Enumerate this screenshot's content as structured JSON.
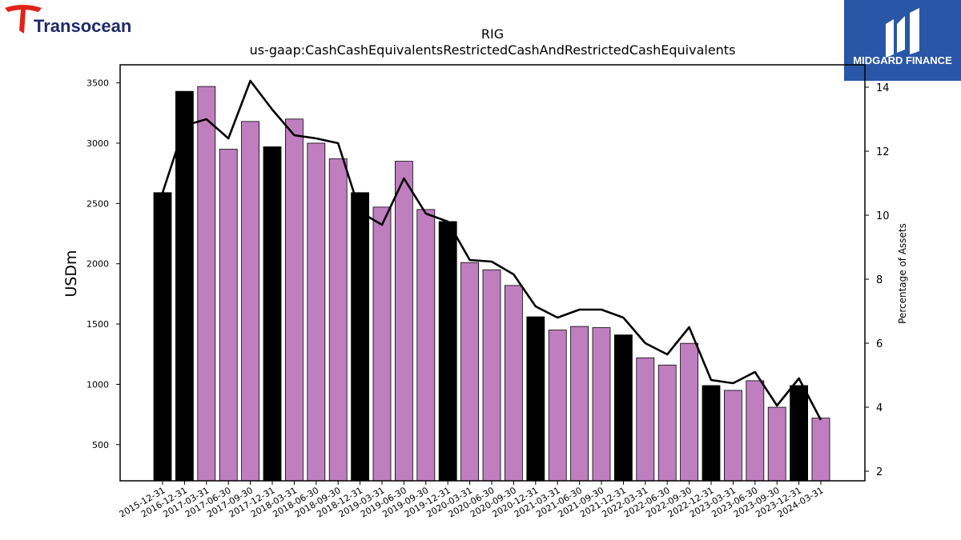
{
  "branding": {
    "left_logo_text": "Transocean",
    "right_logo_text": "MIDGARD FINANCE",
    "colors": {
      "transocean_red": "#e2231a",
      "transocean_navy": "#1f2a6b",
      "midgard_blue": "#2a56a8"
    }
  },
  "chart_data": {
    "type": "bar",
    "title": "RIG",
    "subtitle": "us-gaap:CashCashEquivalentsRestrictedCashAndRestrictedCashEquivalents",
    "ylabel": "USDm",
    "y2label": "Percentage of Assets",
    "ylim": [
      200,
      3650
    ],
    "y2lim": [
      1.7,
      14.7
    ],
    "yticks": [
      500,
      1000,
      1500,
      2000,
      2500,
      3000,
      3500
    ],
    "y2ticks": [
      2,
      4,
      6,
      8,
      10,
      12,
      14
    ],
    "colors": {
      "annual": "#000000",
      "quarterly": "#bf7fbf",
      "line": "#000000"
    },
    "categories": [
      "2015-12-31",
      "2016-12-31",
      "2017-03-31",
      "2017-06-30",
      "2017-09-30",
      "2017-12-31",
      "2018-03-31",
      "2018-06-30",
      "2018-09-30",
      "2018-12-31",
      "2019-03-31",
      "2019-06-30",
      "2019-09-30",
      "2019-12-31",
      "2020-03-31",
      "2020-06-30",
      "2020-09-30",
      "2020-12-31",
      "2021-03-31",
      "2021-06-30",
      "2021-09-30",
      "2021-12-31",
      "2022-03-31",
      "2022-06-30",
      "2022-09-30",
      "2022-12-31",
      "2023-03-31",
      "2023-06-30",
      "2023-09-30",
      "2023-12-31",
      "2024-03-31"
    ],
    "series": [
      {
        "type": "bar",
        "values": [
          2590,
          3430,
          3470,
          2950,
          3180,
          2970,
          3200,
          3000,
          2870,
          2590,
          2470,
          2850,
          2450,
          2350,
          2010,
          1950,
          1820,
          1560,
          1450,
          1480,
          1470,
          1410,
          1220,
          1160,
          1340,
          990,
          950,
          1030,
          810,
          990,
          720
        ],
        "annual": [
          true,
          true,
          false,
          false,
          false,
          true,
          false,
          false,
          false,
          true,
          false,
          false,
          false,
          true,
          false,
          false,
          false,
          true,
          false,
          false,
          false,
          true,
          false,
          false,
          false,
          true,
          false,
          false,
          false,
          true,
          false
        ]
      },
      {
        "type": "line",
        "axis": "right",
        "values": [
          10.7,
          12.8,
          13.0,
          12.4,
          14.2,
          13.3,
          12.5,
          12.4,
          12.25,
          10.1,
          9.7,
          11.15,
          10.05,
          9.8,
          8.6,
          8.55,
          8.15,
          7.15,
          6.8,
          7.05,
          7.05,
          6.8,
          6.0,
          5.65,
          6.5,
          4.85,
          4.75,
          5.1,
          4.05,
          4.9,
          3.6
        ]
      }
    ]
  }
}
